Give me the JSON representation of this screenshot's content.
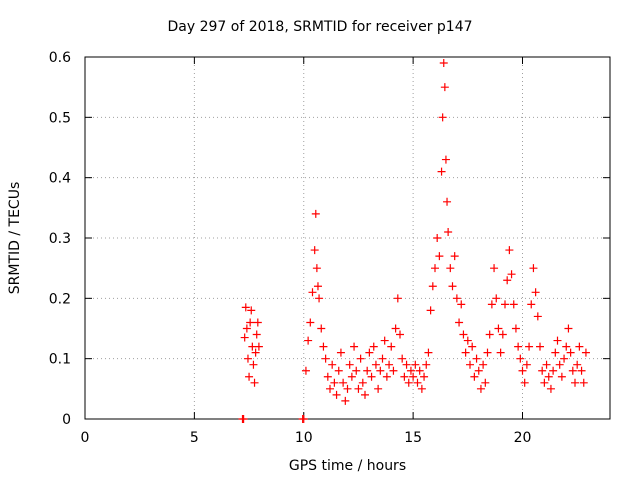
{
  "chart_data": {
    "type": "scatter",
    "title": "Day 297 of 2018, SRMTID for receiver p147",
    "xlabel": "GPS time / hours",
    "ylabel": "SRMTID / TECUs",
    "xlim": [
      0,
      24
    ],
    "ylim": [
      0,
      0.6
    ],
    "xticks": [
      0,
      5,
      10,
      15,
      20
    ],
    "xtick_labels": [
      "0",
      "5",
      "10",
      "15",
      "20"
    ],
    "yticks": [
      0,
      0.1,
      0.2,
      0.3,
      0.4,
      0.5,
      0.6
    ],
    "ytick_labels": [
      "0",
      "0.1",
      "0.2",
      "0.3",
      "0.4",
      "0.5",
      "0.6"
    ],
    "grid": true,
    "marker": "plus",
    "series": [
      {
        "name": "SRMTID",
        "color": "#ff0000",
        "points": [
          [
            7.2,
            0.0
          ],
          [
            7.25,
            0.0
          ],
          [
            9.95,
            0.0
          ],
          [
            10.0,
            0.0
          ],
          [
            7.3,
            0.135
          ],
          [
            7.35,
            0.185
          ],
          [
            7.4,
            0.15
          ],
          [
            7.45,
            0.1
          ],
          [
            7.5,
            0.07
          ],
          [
            7.55,
            0.16
          ],
          [
            7.6,
            0.18
          ],
          [
            7.65,
            0.12
          ],
          [
            7.7,
            0.09
          ],
          [
            7.75,
            0.06
          ],
          [
            7.8,
            0.11
          ],
          [
            7.85,
            0.14
          ],
          [
            7.9,
            0.16
          ],
          [
            7.95,
            0.12
          ],
          [
            10.1,
            0.08
          ],
          [
            10.2,
            0.13
          ],
          [
            10.3,
            0.16
          ],
          [
            10.4,
            0.21
          ],
          [
            10.5,
            0.28
          ],
          [
            10.55,
            0.34
          ],
          [
            10.6,
            0.25
          ],
          [
            10.65,
            0.22
          ],
          [
            10.7,
            0.2
          ],
          [
            10.8,
            0.15
          ],
          [
            10.9,
            0.12
          ],
          [
            11.0,
            0.1
          ],
          [
            11.1,
            0.07
          ],
          [
            11.2,
            0.05
          ],
          [
            11.3,
            0.09
          ],
          [
            11.4,
            0.06
          ],
          [
            11.5,
            0.04
          ],
          [
            11.6,
            0.08
          ],
          [
            11.7,
            0.11
          ],
          [
            11.8,
            0.06
          ],
          [
            11.9,
            0.03
          ],
          [
            12.0,
            0.05
          ],
          [
            12.1,
            0.09
          ],
          [
            12.2,
            0.07
          ],
          [
            12.3,
            0.12
          ],
          [
            12.4,
            0.08
          ],
          [
            12.5,
            0.05
          ],
          [
            12.6,
            0.1
          ],
          [
            12.7,
            0.06
          ],
          [
            12.8,
            0.04
          ],
          [
            12.9,
            0.08
          ],
          [
            13.0,
            0.11
          ],
          [
            13.1,
            0.07
          ],
          [
            13.2,
            0.12
          ],
          [
            13.3,
            0.09
          ],
          [
            13.4,
            0.05
          ],
          [
            13.5,
            0.08
          ],
          [
            13.6,
            0.1
          ],
          [
            13.7,
            0.13
          ],
          [
            13.8,
            0.07
          ],
          [
            13.9,
            0.09
          ],
          [
            14.0,
            0.12
          ],
          [
            14.1,
            0.08
          ],
          [
            14.2,
            0.15
          ],
          [
            14.3,
            0.2
          ],
          [
            14.4,
            0.14
          ],
          [
            14.5,
            0.1
          ],
          [
            14.6,
            0.07
          ],
          [
            14.7,
            0.09
          ],
          [
            14.8,
            0.06
          ],
          [
            14.9,
            0.08
          ],
          [
            15.0,
            0.07
          ],
          [
            15.1,
            0.09
          ],
          [
            15.2,
            0.06
          ],
          [
            15.3,
            0.08
          ],
          [
            15.4,
            0.05
          ],
          [
            15.5,
            0.07
          ],
          [
            15.6,
            0.09
          ],
          [
            15.7,
            0.11
          ],
          [
            15.8,
            0.18
          ],
          [
            15.9,
            0.22
          ],
          [
            16.0,
            0.25
          ],
          [
            16.1,
            0.3
          ],
          [
            16.2,
            0.27
          ],
          [
            16.3,
            0.41
          ],
          [
            16.35,
            0.5
          ],
          [
            16.4,
            0.59
          ],
          [
            16.45,
            0.55
          ],
          [
            16.5,
            0.43
          ],
          [
            16.55,
            0.36
          ],
          [
            16.6,
            0.31
          ],
          [
            16.7,
            0.25
          ],
          [
            16.8,
            0.22
          ],
          [
            16.9,
            0.27
          ],
          [
            17.0,
            0.2
          ],
          [
            17.1,
            0.16
          ],
          [
            17.2,
            0.19
          ],
          [
            17.3,
            0.14
          ],
          [
            17.4,
            0.11
          ],
          [
            17.5,
            0.13
          ],
          [
            17.6,
            0.09
          ],
          [
            17.7,
            0.12
          ],
          [
            17.8,
            0.07
          ],
          [
            17.9,
            0.1
          ],
          [
            18.0,
            0.08
          ],
          [
            18.1,
            0.05
          ],
          [
            18.2,
            0.09
          ],
          [
            18.3,
            0.06
          ],
          [
            18.4,
            0.11
          ],
          [
            18.5,
            0.14
          ],
          [
            18.6,
            0.19
          ],
          [
            18.7,
            0.25
          ],
          [
            18.8,
            0.2
          ],
          [
            18.9,
            0.15
          ],
          [
            19.0,
            0.11
          ],
          [
            19.1,
            0.14
          ],
          [
            19.2,
            0.19
          ],
          [
            19.3,
            0.23
          ],
          [
            19.4,
            0.28
          ],
          [
            19.5,
            0.24
          ],
          [
            19.6,
            0.19
          ],
          [
            19.7,
            0.15
          ],
          [
            19.8,
            0.12
          ],
          [
            19.9,
            0.1
          ],
          [
            20.0,
            0.08
          ],
          [
            20.1,
            0.06
          ],
          [
            20.2,
            0.09
          ],
          [
            20.3,
            0.12
          ],
          [
            20.4,
            0.19
          ],
          [
            20.5,
            0.25
          ],
          [
            20.6,
            0.21
          ],
          [
            20.7,
            0.17
          ],
          [
            20.8,
            0.12
          ],
          [
            20.9,
            0.08
          ],
          [
            21.0,
            0.06
          ],
          [
            21.1,
            0.09
          ],
          [
            21.2,
            0.07
          ],
          [
            21.3,
            0.05
          ],
          [
            21.4,
            0.08
          ],
          [
            21.5,
            0.11
          ],
          [
            21.6,
            0.13
          ],
          [
            21.7,
            0.09
          ],
          [
            21.8,
            0.07
          ],
          [
            21.9,
            0.1
          ],
          [
            22.0,
            0.12
          ],
          [
            22.1,
            0.15
          ],
          [
            22.2,
            0.11
          ],
          [
            22.3,
            0.08
          ],
          [
            22.4,
            0.06
          ],
          [
            22.5,
            0.09
          ],
          [
            22.6,
            0.12
          ],
          [
            22.7,
            0.08
          ],
          [
            22.8,
            0.06
          ],
          [
            22.9,
            0.11
          ]
        ]
      }
    ]
  }
}
